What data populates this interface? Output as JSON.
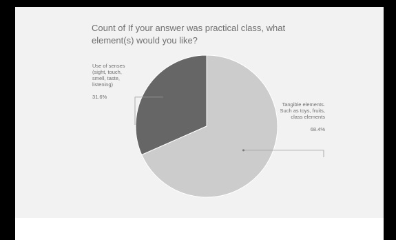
{
  "chart_data": {
    "type": "pie",
    "title": "Count of If your answer was practical class, what element(s) would you like?",
    "slices": [
      {
        "label": "Use of senses (sight, touch, smell, taste, listening)",
        "value": 31.6,
        "display": "31.6%",
        "color": "#666666"
      },
      {
        "label": "Tangible elements. Such as toys, fruits, class elements",
        "value": 68.4,
        "display": "68.4%",
        "color": "#cccccc"
      }
    ]
  }
}
